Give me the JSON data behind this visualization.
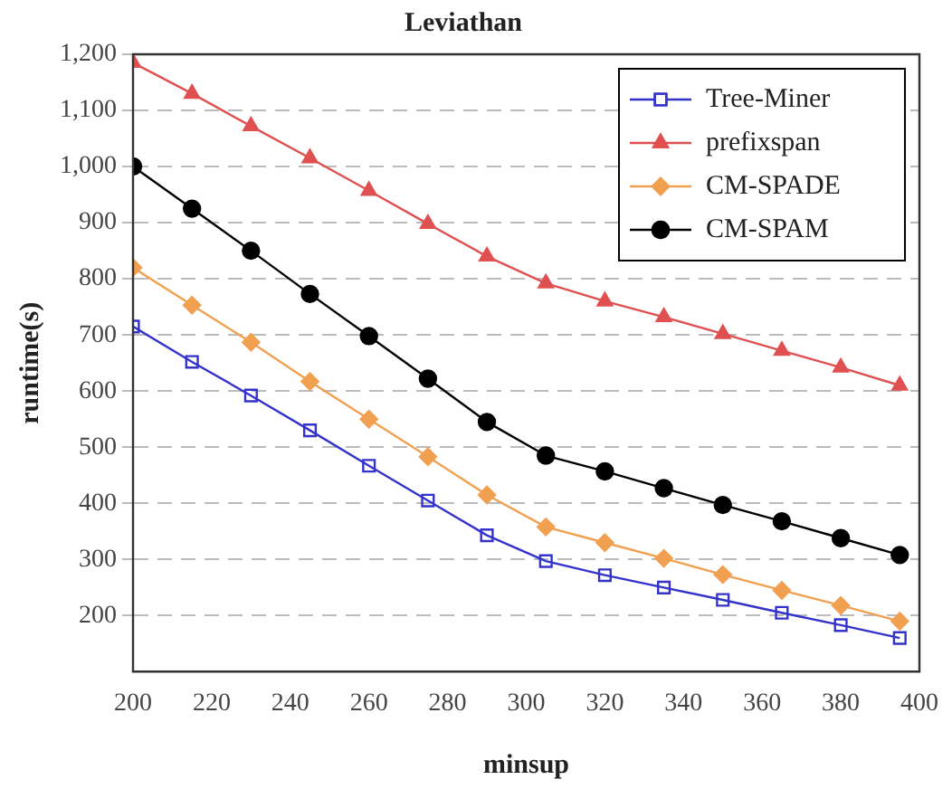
{
  "chart_data": {
    "type": "line",
    "title": "Leviathan",
    "xlabel": "minsup",
    "ylabel": "runtime(s)",
    "x": [
      200,
      215,
      230,
      245,
      260,
      275,
      290,
      305,
      320,
      335,
      350,
      365,
      380,
      395
    ],
    "xlim": [
      200,
      400
    ],
    "xticks": [
      200,
      220,
      240,
      260,
      280,
      300,
      320,
      340,
      360,
      380,
      400
    ],
    "ylim": [
      100,
      1200
    ],
    "yticks": [
      200,
      300,
      400,
      500,
      600,
      700,
      800,
      900,
      {
        "value": 1000,
        "label": "1,000"
      },
      {
        "value": 1100,
        "label": "1,100"
      },
      {
        "value": 1200,
        "label": "1,200"
      }
    ],
    "grid": "y",
    "legend": "top right",
    "line_style": "solid",
    "series": [
      {
        "name": "Tree-Miner",
        "color": "#3333cc",
        "marker": "square",
        "values": [
          715,
          652,
          592,
          530,
          467,
          405,
          343,
          297,
          272,
          250,
          228,
          205,
          183,
          160
        ]
      },
      {
        "name": "prefixspan",
        "color": "#e05050",
        "marker": "triangle",
        "values": [
          1185,
          1130,
          1072,
          1015,
          957,
          898,
          840,
          792,
          760,
          732,
          702,
          672,
          642,
          610
        ]
      },
      {
        "name": "CM-SPADE",
        "color": "#f0a050",
        "marker": "diamond",
        "values": [
          820,
          753,
          687,
          617,
          550,
          483,
          415,
          358,
          330,
          302,
          273,
          245,
          218,
          190
        ]
      },
      {
        "name": "CM-SPAM",
        "color": "#000000",
        "marker": "circle",
        "values": [
          1000,
          925,
          850,
          773,
          698,
          622,
          545,
          485,
          457,
          427,
          397,
          368,
          338,
          308
        ]
      }
    ]
  }
}
